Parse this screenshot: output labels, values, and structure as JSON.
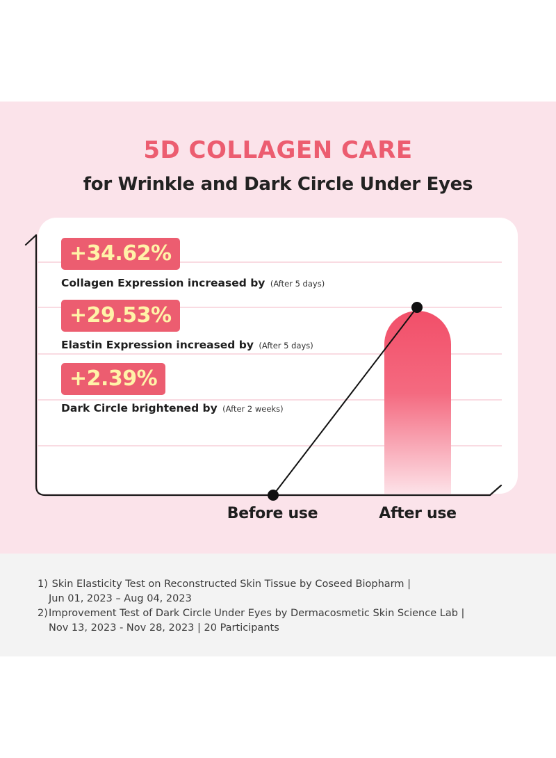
{
  "title": "5D COLLAGEN CARE",
  "subtitle": "for Wrinkle and Dark Circle Under Eyes",
  "stats": [
    {
      "value": "+34.62%",
      "label": "Collagen Expression increased by",
      "note": "(After 5 days)"
    },
    {
      "value": "+29.53%",
      "label": "Elastin Expression increased by",
      "note": "(After 5 days)"
    },
    {
      "value": "+2.39%",
      "label": "Dark Circle brightened by",
      "note": "(After 2 weeks)"
    }
  ],
  "colors": {
    "accent": "#ec5d70",
    "badge_text": "#fff3a8",
    "band": "#fbe3ea",
    "footer": "#f3f3f3"
  },
  "chart_data": {
    "type": "line",
    "categories": [
      "Before use",
      "After use"
    ],
    "x": [
      "Before use",
      "After use"
    ],
    "y": [
      0,
      1
    ],
    "grid": true,
    "legend": "none"
  },
  "footnotes": [
    {
      "num": "1)",
      "line1": "Skin Elasticity Test on Reconstructed Skin Tissue by Coseed Biopharm |",
      "line2": "Jun 01, 2023 – Aug 04, 2023"
    },
    {
      "num": "2)",
      "line1": "Improvement Test of Dark Circle Under Eyes by Dermacosmetic Skin Science Lab |",
      "line2": "Nov 13, 2023 - Nov 28, 2023 | 20 Participants"
    }
  ]
}
